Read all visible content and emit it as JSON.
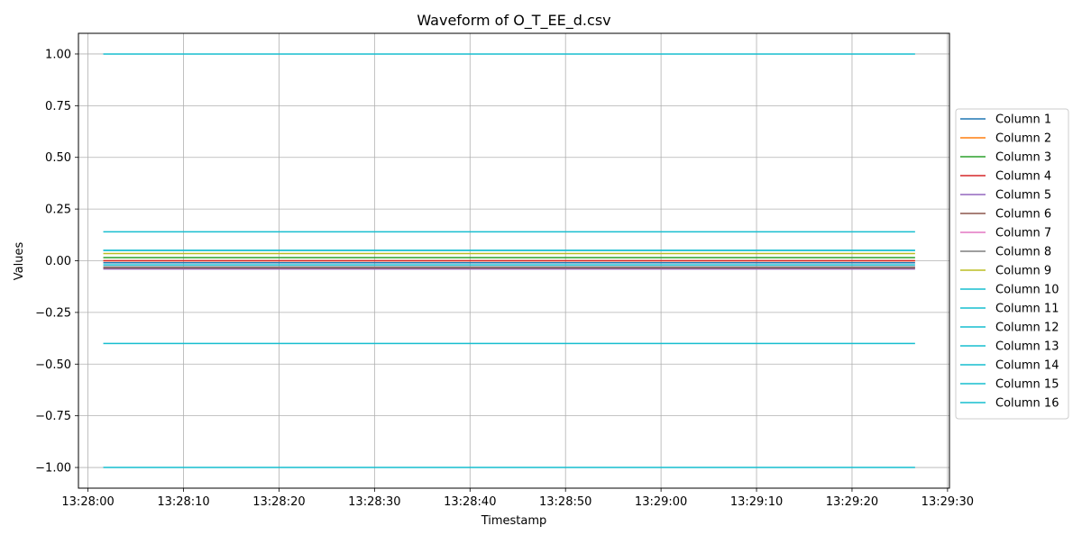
{
  "chart_data": {
    "type": "line",
    "title": "Waveform of O_T_EE_d.csv",
    "xlabel": "Timestamp",
    "ylabel": "Values",
    "x_start": "13:28:01.6",
    "x_end": "13:29:26.6",
    "xlim": [
      "13:27:59.0",
      "13:29:30.2"
    ],
    "ylim": [
      -1.1,
      1.1
    ],
    "x_ticks": [
      "13:28:00",
      "13:28:10",
      "13:28:20",
      "13:28:30",
      "13:28:40",
      "13:28:50",
      "13:29:00",
      "13:29:10",
      "13:29:20",
      "13:29:30"
    ],
    "y_ticks": [
      1.0,
      0.75,
      0.5,
      0.25,
      0.0,
      -0.25,
      -0.5,
      -0.75,
      -1.0
    ],
    "y_tick_labels": [
      "1.00",
      "0.75",
      "0.50",
      "0.25",
      "0.00",
      "−0.25",
      "−0.50",
      "−0.75",
      "−1.00"
    ],
    "grid": true,
    "legend_position": "right",
    "series": [
      {
        "name": "Column 1",
        "color": "#1f77b4",
        "value": -0.01
      },
      {
        "name": "Column 2",
        "color": "#ff7f0e",
        "value": 0.0
      },
      {
        "name": "Column 3",
        "color": "#2ca02c",
        "value": 0.015
      },
      {
        "name": "Column 4",
        "color": "#d62728",
        "value": 0.0
      },
      {
        "name": "Column 5",
        "color": "#9467bd",
        "value": -0.04
      },
      {
        "name": "Column 6",
        "color": "#8c564b",
        "value": -0.035
      },
      {
        "name": "Column 7",
        "color": "#e377c2",
        "value": -0.03
      },
      {
        "name": "Column 8",
        "color": "#7f7f7f",
        "value": -0.03
      },
      {
        "name": "Column 9",
        "color": "#bcbd22",
        "value": 0.035
      },
      {
        "name": "Column 10",
        "color": "#17becf",
        "value": 1.0
      },
      {
        "name": "Column 11",
        "color": "#17becf",
        "value": 0.14
      },
      {
        "name": "Column 12",
        "color": "#17becf",
        "value": 0.05
      },
      {
        "name": "Column 13",
        "color": "#17becf",
        "value": -0.02
      },
      {
        "name": "Column 14",
        "color": "#17becf",
        "value": -0.4
      },
      {
        "name": "Column 15",
        "color": "#17becf",
        "value": -1.0
      },
      {
        "name": "Column 16",
        "color": "#17becf",
        "value": 0.05
      }
    ]
  }
}
